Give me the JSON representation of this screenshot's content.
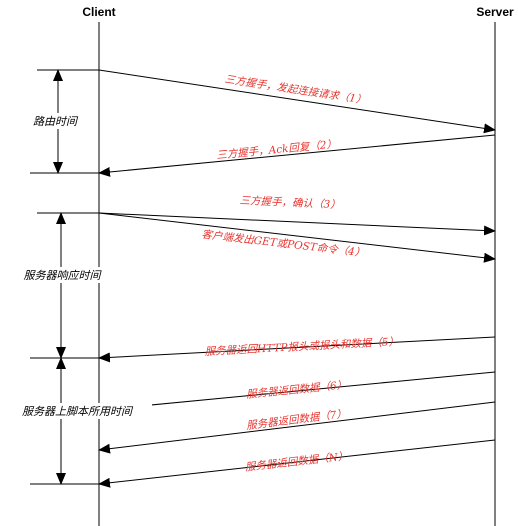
{
  "participants": {
    "client": "Client",
    "server": "Server"
  },
  "messages": [
    {
      "id": "m1",
      "text": "三方握手，发起连接请求（1）",
      "direction": "client-to-server"
    },
    {
      "id": "m2",
      "text": "三方握手，Ack回复（2）",
      "direction": "server-to-client"
    },
    {
      "id": "m3",
      "text": "三方握手，确认（3）",
      "direction": "client-to-server"
    },
    {
      "id": "m4",
      "text": "客户端发出GET或POST命令（4）",
      "direction": "client-to-server"
    },
    {
      "id": "m5",
      "text": "服务器返回HTTP报头或报头和数据（5）",
      "direction": "server-to-client"
    },
    {
      "id": "m6",
      "text": "服务器返回数据（6）",
      "direction": "server-to-client"
    },
    {
      "id": "m7",
      "text": "服务器返回数据（7）",
      "direction": "server-to-client"
    },
    {
      "id": "m8",
      "text": "服务器返回数据（N）",
      "direction": "server-to-client"
    }
  ],
  "intervals": {
    "routing": "路由时间",
    "server_response": "服务器响应时间",
    "script_time": "服务器上脚本所用时间"
  },
  "colors": {
    "message_text": "#e8352f",
    "lines": "#000000"
  }
}
